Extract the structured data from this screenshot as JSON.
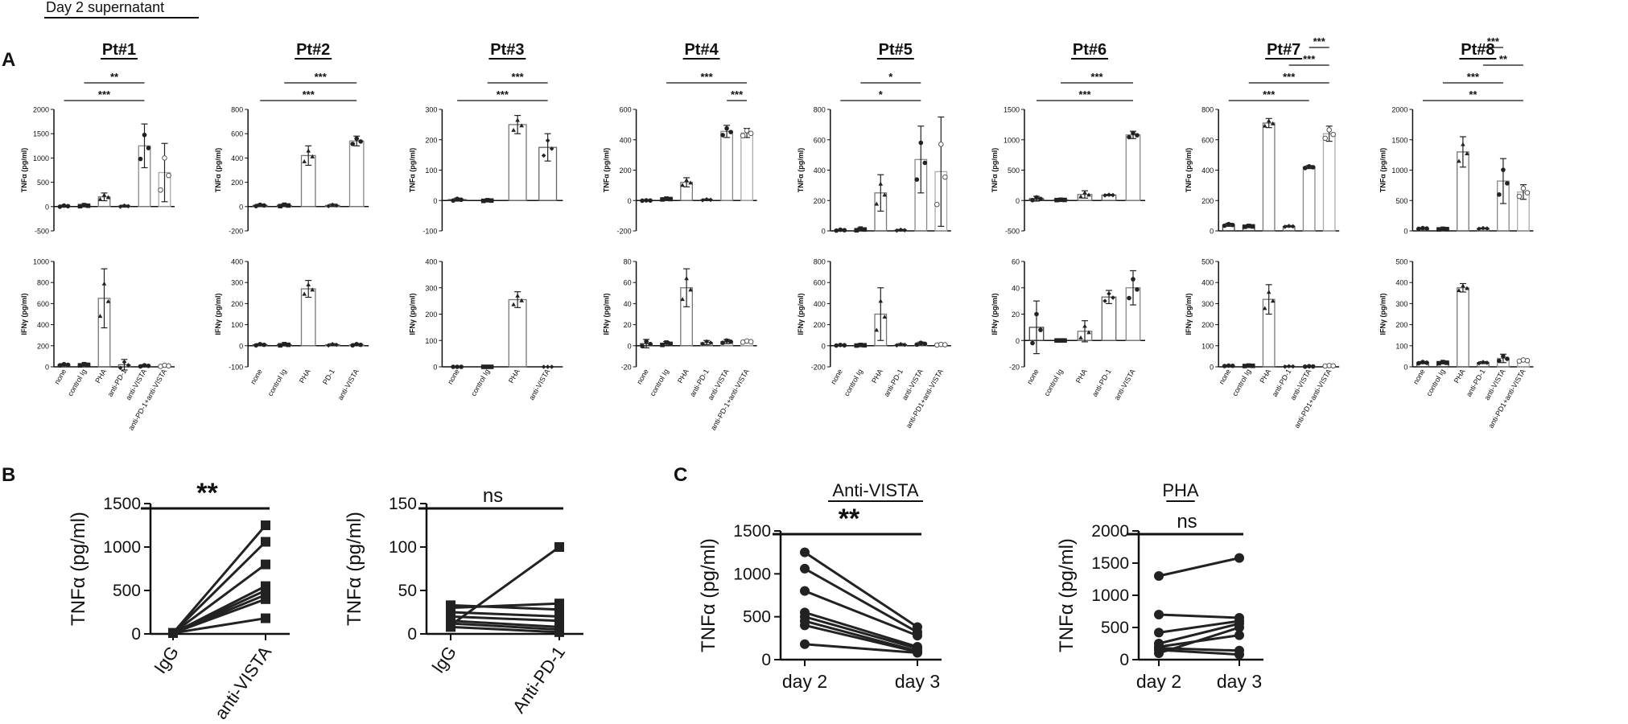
{
  "figure": {
    "header": "Day 2 supernatant",
    "panel_labels": [
      "A",
      "B",
      "C"
    ],
    "tnf_ylabel": "TNFα (pg/ml)",
    "ifn_ylabel": "IFNγ (pg/ml)"
  },
  "chart_data": [
    {
      "id": "pt1-tnf",
      "type": "bar",
      "panel": "A",
      "patient": "Pt#1",
      "row": "tnf",
      "ylabel": "TNFα (pg/ml)",
      "yticks": [
        -500,
        0,
        500,
        1000,
        1500,
        2000
      ],
      "ylim": [
        -500,
        2000
      ],
      "categories": [
        "none",
        "control Ig",
        "PHA",
        "anti-PD-1",
        "anti-VISTA",
        "anti-PD-1+anti-VISTA"
      ],
      "values": [
        10,
        20,
        200,
        10,
        1250,
        700
      ],
      "errors": [
        20,
        20,
        80,
        20,
        450,
        600
      ],
      "sig": [
        {
          "label": "***",
          "from": 0,
          "to": 4
        },
        {
          "label": "**",
          "from": 1,
          "to": 4
        }
      ]
    },
    {
      "id": "pt1-ifn",
      "type": "bar",
      "panel": "A",
      "patient": "Pt#1",
      "row": "ifn",
      "ylabel": "IFNγ (pg/ml)",
      "yticks": [
        0,
        200,
        400,
        600,
        800,
        1000
      ],
      "ylim": [
        0,
        1000
      ],
      "categories": [
        "none",
        "control Ig",
        "PHA",
        "anti-PD-1",
        "anti-VISTA",
        "anti-PD-1+anti-VISTA"
      ],
      "values": [
        20,
        20,
        650,
        20,
        10,
        10
      ],
      "errors": [
        10,
        10,
        280,
        50,
        10,
        10
      ],
      "sig": []
    },
    {
      "id": "pt2-tnf",
      "type": "bar",
      "panel": "A",
      "patient": "Pt#2",
      "row": "tnf",
      "ylabel": "TNFα (pg/ml)",
      "yticks": [
        -200,
        0,
        200,
        400,
        600,
        800
      ],
      "ylim": [
        -200,
        800
      ],
      "categories": [
        "none",
        "control Ig",
        "PHA",
        "PD-1",
        "anti-VISTA"
      ],
      "values": [
        10,
        10,
        420,
        10,
        540
      ],
      "errors": [
        10,
        10,
        80,
        10,
        40
      ],
      "sig": [
        {
          "label": "***",
          "from": 0,
          "to": 4
        },
        {
          "label": "***",
          "from": 1,
          "to": 4
        }
      ]
    },
    {
      "id": "pt2-ifn",
      "type": "bar",
      "panel": "A",
      "patient": "Pt#2",
      "row": "ifn",
      "ylabel": "IFNγ (pg/ml)",
      "yticks": [
        -100,
        0,
        100,
        200,
        300,
        400
      ],
      "ylim": [
        -100,
        400
      ],
      "categories": [
        "none",
        "control Ig",
        "PHA",
        "PD-1",
        "anti-VISTA"
      ],
      "values": [
        5,
        5,
        270,
        5,
        5
      ],
      "errors": [
        5,
        5,
        40,
        5,
        5
      ],
      "sig": []
    },
    {
      "id": "pt3-tnf",
      "type": "bar",
      "panel": "A",
      "patient": "Pt#3",
      "row": "tnf",
      "ylabel": "TNFα (pg/ml)",
      "yticks": [
        -100,
        0,
        100,
        200,
        300
      ],
      "ylim": [
        -100,
        300
      ],
      "categories": [
        "none",
        "control Ig",
        "PHA",
        "anti-VISTA"
      ],
      "values": [
        3,
        0,
        250,
        175
      ],
      "errors": [
        5,
        2,
        30,
        45
      ],
      "sig": [
        {
          "label": "***",
          "from": 0,
          "to": 3
        },
        {
          "label": "***",
          "from": 1,
          "to": 3
        }
      ]
    },
    {
      "id": "pt3-ifn",
      "type": "bar",
      "panel": "A",
      "patient": "Pt#3",
      "row": "ifn",
      "ylabel": "IFNγ (pg/ml)",
      "yticks": [
        0,
        100,
        200,
        300,
        400
      ],
      "ylim": [
        0,
        400
      ],
      "categories": [
        "none",
        "control Ig",
        "PHA",
        "anti-VISTA"
      ],
      "values": [
        0,
        0,
        255,
        0
      ],
      "errors": [
        0,
        0,
        30,
        0
      ],
      "sig": []
    },
    {
      "id": "pt4-tnf",
      "type": "bar",
      "panel": "A",
      "patient": "Pt#4",
      "row": "tnf",
      "ylabel": "TNFα (pg/ml)",
      "yticks": [
        -200,
        0,
        200,
        400,
        600
      ],
      "ylim": [
        -200,
        600
      ],
      "categories": [
        "none",
        "control Ig",
        "PHA",
        "anti-PD-1",
        "anti-VISTA",
        "anti-PD-1+anti-VISTA"
      ],
      "values": [
        0,
        10,
        120,
        5,
        455,
        445
      ],
      "errors": [
        2,
        5,
        30,
        5,
        40,
        30
      ],
      "sig": [
        {
          "label": "***",
          "from": 4,
          "to": 5
        },
        {
          "label": "***",
          "from": 1,
          "to": 5
        }
      ]
    },
    {
      "id": "pt4-ifn",
      "type": "bar",
      "panel": "A",
      "patient": "Pt#4",
      "row": "ifn",
      "ylabel": "IFNγ (pg/ml)",
      "yticks": [
        -20,
        0,
        20,
        40,
        60,
        80
      ],
      "ylim": [
        -20,
        80
      ],
      "categories": [
        "none",
        "control Ig",
        "PHA",
        "anti-PD-1",
        "anti-VISTA",
        "anti-PD-1+anti-VISTA"
      ],
      "values": [
        2,
        2,
        55,
        3,
        4,
        4
      ],
      "errors": [
        4,
        2,
        18,
        2,
        2,
        1
      ],
      "sig": []
    },
    {
      "id": "pt5-tnf",
      "type": "bar",
      "panel": "A",
      "patient": "Pt#5",
      "row": "tnf",
      "ylabel": "TNFα (pg/ml)",
      "yticks": [
        0,
        200,
        400,
        600,
        800
      ],
      "ylim": [
        0,
        800
      ],
      "categories": [
        "none",
        "control Ig",
        "PHA",
        "anti-PD-1",
        "anti-VISTA",
        "anti-PD1+anti-VISTA"
      ],
      "values": [
        5,
        10,
        250,
        5,
        470,
        390
      ],
      "errors": [
        5,
        10,
        120,
        5,
        220,
        360
      ],
      "sig": [
        {
          "label": "*",
          "from": 0,
          "to": 4
        },
        {
          "label": "*",
          "from": 1,
          "to": 4
        }
      ]
    },
    {
      "id": "pt5-ifn",
      "type": "bar",
      "panel": "A",
      "patient": "Pt#5",
      "row": "ifn",
      "ylabel": "IFNγ (pg/ml)",
      "yticks": [
        -200,
        0,
        200,
        400,
        600,
        800
      ],
      "ylim": [
        -200,
        800
      ],
      "categories": [
        "none",
        "control Ig",
        "PHA",
        "anti-PD-1",
        "anti-VISTA",
        "anti-PD1+anti-VISTA"
      ],
      "values": [
        5,
        5,
        300,
        10,
        20,
        10
      ],
      "errors": [
        5,
        5,
        250,
        10,
        15,
        5
      ],
      "sig": []
    },
    {
      "id": "pt6-tnf",
      "type": "bar",
      "panel": "A",
      "patient": "Pt#6",
      "row": "tnf",
      "ylabel": "TNFα (pg/ml)",
      "yticks": [
        -500,
        0,
        500,
        1000,
        1500
      ],
      "ylim": [
        -500,
        1500
      ],
      "categories": [
        "none",
        "control Ig",
        "PHA",
        "anti-PD-1",
        "anti-VISTA"
      ],
      "values": [
        30,
        10,
        100,
        90,
        1080
      ],
      "errors": [
        40,
        5,
        60,
        10,
        60
      ],
      "sig": [
        {
          "label": "***",
          "from": 0,
          "to": 4
        },
        {
          "label": "***",
          "from": 1,
          "to": 4
        }
      ]
    },
    {
      "id": "pt6-ifn",
      "type": "bar",
      "panel": "A",
      "patient": "Pt#6",
      "row": "ifn",
      "ylabel": "IFNγ (pg/ml)",
      "yticks": [
        -20,
        0,
        20,
        40,
        60
      ],
      "ylim": [
        -20,
        60
      ],
      "categories": [
        "none",
        "control Ig",
        "PHA",
        "anti-PD-1",
        "anti-VISTA"
      ],
      "values": [
        10,
        0,
        7,
        33,
        40
      ],
      "errors": [
        20,
        0,
        8,
        5,
        13
      ],
      "sig": []
    },
    {
      "id": "pt7-tnf",
      "type": "bar",
      "panel": "A",
      "patient": "Pt#7",
      "row": "tnf",
      "ylabel": "TNFα (pg/ml)",
      "yticks": [
        0,
        200,
        400,
        600,
        800
      ],
      "ylim": [
        0,
        800
      ],
      "categories": [
        "none",
        "control Ig",
        "PHA",
        "anti-PD-1",
        "anti-VISTA",
        "anti-PD1+anti-VISTA"
      ],
      "values": [
        40,
        30,
        710,
        30,
        420,
        640
      ],
      "errors": [
        10,
        5,
        30,
        5,
        10,
        50
      ],
      "sig": [
        {
          "label": "***",
          "from": 0,
          "to": 4
        },
        {
          "label": "***",
          "from": 1,
          "to": 5
        },
        {
          "label": "***",
          "from": 3,
          "to": 5
        },
        {
          "label": "***",
          "from": 4,
          "to": 5
        }
      ]
    },
    {
      "id": "pt7-ifn",
      "type": "bar",
      "panel": "A",
      "patient": "Pt#7",
      "row": "ifn",
      "ylabel": "IFNγ (pg/ml)",
      "yticks": [
        0,
        100,
        200,
        300,
        400,
        500
      ],
      "ylim": [
        0,
        500
      ],
      "categories": [
        "none",
        "control Ig",
        "PHA",
        "anti-PD-1",
        "anti-VISTA",
        "anti-PD1+anti-VISTA"
      ],
      "values": [
        5,
        5,
        320,
        2,
        2,
        5
      ],
      "errors": [
        2,
        2,
        70,
        2,
        2,
        2
      ],
      "sig": []
    },
    {
      "id": "pt8-tnf",
      "type": "bar",
      "panel": "A",
      "patient": "Pt#8",
      "row": "tnf",
      "ylabel": "TNFα (pg/ml)",
      "yticks": [
        0,
        500,
        1000,
        1500,
        2000
      ],
      "ylim": [
        0,
        2000
      ],
      "categories": [
        "none",
        "control Ig",
        "PHA",
        "anti-PD-1",
        "anti-VISTA",
        "anti-PD1+anti-VISTA"
      ],
      "values": [
        40,
        30,
        1300,
        40,
        820,
        640
      ],
      "errors": [
        10,
        10,
        250,
        10,
        370,
        120
      ],
      "sig": [
        {
          "label": "**",
          "from": 0,
          "to": 5
        },
        {
          "label": "***",
          "from": 1,
          "to": 4
        },
        {
          "label": "**",
          "from": 3,
          "to": 5
        },
        {
          "label": "***",
          "from": 3,
          "to": 4
        }
      ]
    },
    {
      "id": "pt8-ifn",
      "type": "bar",
      "panel": "A",
      "patient": "Pt#8",
      "row": "ifn",
      "ylabel": "IFNγ (pg/ml)",
      "yticks": [
        0,
        100,
        200,
        300,
        400,
        500
      ],
      "ylim": [
        0,
        500
      ],
      "categories": [
        "none",
        "control Ig",
        "PHA",
        "anti-PD-1",
        "anti-VISTA",
        "anti-PD1+anti-VISTA"
      ],
      "values": [
        20,
        20,
        375,
        20,
        40,
        30
      ],
      "errors": [
        5,
        5,
        20,
        5,
        20,
        5
      ],
      "sig": []
    },
    {
      "id": "b1",
      "type": "line",
      "panel": "B",
      "ylabel": "TNFα (pg/ml)",
      "yticks": [
        0,
        500,
        1000,
        1500
      ],
      "ylim": [
        0,
        1500
      ],
      "categories": [
        "IgG",
        "anti-VISTA"
      ],
      "marker": "square",
      "sig_label": "**",
      "pairs": [
        [
          10,
          1250
        ],
        [
          10,
          1060
        ],
        [
          10,
          800
        ],
        [
          10,
          550
        ],
        [
          10,
          500
        ],
        [
          10,
          450
        ],
        [
          10,
          400
        ],
        [
          10,
          180
        ]
      ]
    },
    {
      "id": "b2",
      "type": "line",
      "panel": "B",
      "ylabel": "TNFα (pg/ml)",
      "yticks": [
        0,
        50,
        100,
        150
      ],
      "ylim": [
        0,
        150
      ],
      "categories": [
        "lgG",
        "Anti-PD-1"
      ],
      "marker": "square",
      "sig_label": "ns",
      "pairs": [
        [
          10,
          100
        ],
        [
          30,
          35
        ],
        [
          33,
          28
        ],
        [
          25,
          20
        ],
        [
          20,
          15
        ],
        [
          15,
          8
        ],
        [
          12,
          5
        ],
        [
          8,
          2
        ]
      ]
    },
    {
      "id": "c1",
      "type": "line",
      "panel": "C",
      "title": "Anti-VISTA",
      "ylabel": "TNFα (pg/ml)",
      "yticks": [
        0,
        500,
        1000,
        1500
      ],
      "ylim": [
        0,
        1500
      ],
      "categories": [
        "day 2",
        "day 3"
      ],
      "marker": "circle",
      "sig_label": "**",
      "pairs": [
        [
          1250,
          380
        ],
        [
          1060,
          320
        ],
        [
          800,
          280
        ],
        [
          550,
          150
        ],
        [
          500,
          130
        ],
        [
          450,
          100
        ],
        [
          400,
          90
        ],
        [
          180,
          80
        ]
      ]
    },
    {
      "id": "c2",
      "type": "line",
      "panel": "C",
      "title": "PHA",
      "ylabel": "TNFα (pg/ml)",
      "yticks": [
        0,
        500,
        1000,
        1500,
        2000
      ],
      "ylim": [
        0,
        2000
      ],
      "categories": [
        "day 2",
        "day 3"
      ],
      "marker": "circle",
      "sig_label": "ns",
      "pairs": [
        [
          1300,
          1580
        ],
        [
          700,
          650
        ],
        [
          420,
          600
        ],
        [
          250,
          560
        ],
        [
          200,
          380
        ],
        [
          180,
          140
        ],
        [
          150,
          80
        ],
        [
          100,
          500
        ]
      ]
    }
  ]
}
